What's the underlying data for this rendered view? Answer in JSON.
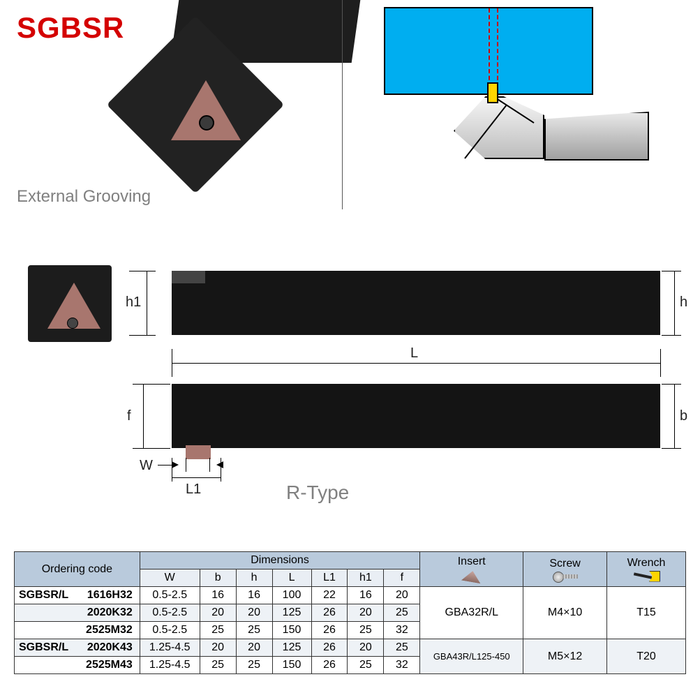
{
  "title": {
    "text": "SGBSR",
    "color": "#d40000",
    "font_size": 42
  },
  "subtitle": {
    "text": "External Grooving",
    "color": "#808080",
    "font_size": 24
  },
  "rtype_label": {
    "text": "R-Type",
    "color": "#808080",
    "font_size": 28
  },
  "schematic": {
    "workpiece_color": "#00aef0",
    "dash_color": "#d40000",
    "tip_color": "#ffd400",
    "tool_fill": "linear-gray",
    "border_color": "#000000"
  },
  "photo": {
    "body_color": "#1e1e1e",
    "insert_color": "#a8766e"
  },
  "dimension_drawing": {
    "bar_color": "#151515",
    "insert_color": "#a8766e",
    "labels": {
      "h1": "h1",
      "h": "h",
      "L": "L",
      "f": "f",
      "b": "b",
      "W": "W",
      "L1": "L1"
    }
  },
  "table": {
    "header_bg_top": "#b9cadc",
    "header_bg_sub": "#e9eef4",
    "alt_row_bg": "#eef2f6",
    "border_color": "#333333",
    "headers": {
      "ordering": "Ordering code",
      "dimensions": "Dimensions",
      "insert": "Insert",
      "screw": "Screw",
      "wrench": "Wrench"
    },
    "dim_cols": [
      "W",
      "b",
      "h",
      "L",
      "L1",
      "h1",
      "f"
    ],
    "rows": [
      {
        "code_prefix": "SGBSR/L",
        "code": "1616H32",
        "W": "0.5-2.5",
        "b": "16",
        "h": "16",
        "L": "100",
        "L1": "22",
        "h1": "16",
        "f": "20"
      },
      {
        "code_prefix": "",
        "code": "2020K32",
        "W": "0.5-2.5",
        "b": "20",
        "h": "20",
        "L": "125",
        "L1": "26",
        "h1": "20",
        "f": "25"
      },
      {
        "code_prefix": "",
        "code": "2525M32",
        "W": "0.5-2.5",
        "b": "25",
        "h": "25",
        "L": "150",
        "L1": "26",
        "h1": "25",
        "f": "32"
      },
      {
        "code_prefix": "SGBSR/L",
        "code": "2020K43",
        "W": "1.25-4.5",
        "b": "20",
        "h": "20",
        "L": "125",
        "L1": "26",
        "h1": "20",
        "f": "25"
      },
      {
        "code_prefix": "",
        "code": "2525M43",
        "W": "1.25-4.5",
        "b": "25",
        "h": "25",
        "L": "150",
        "L1": "26",
        "h1": "25",
        "f": "32"
      }
    ],
    "group_specs": [
      {
        "rowspan": 3,
        "insert": "GBA32R/L",
        "screw": "M4×10",
        "wrench": "T15"
      },
      {
        "rowspan": 2,
        "insert": "GBA43R/L125-450",
        "screw": "M5×12",
        "wrench": "T20"
      }
    ]
  }
}
